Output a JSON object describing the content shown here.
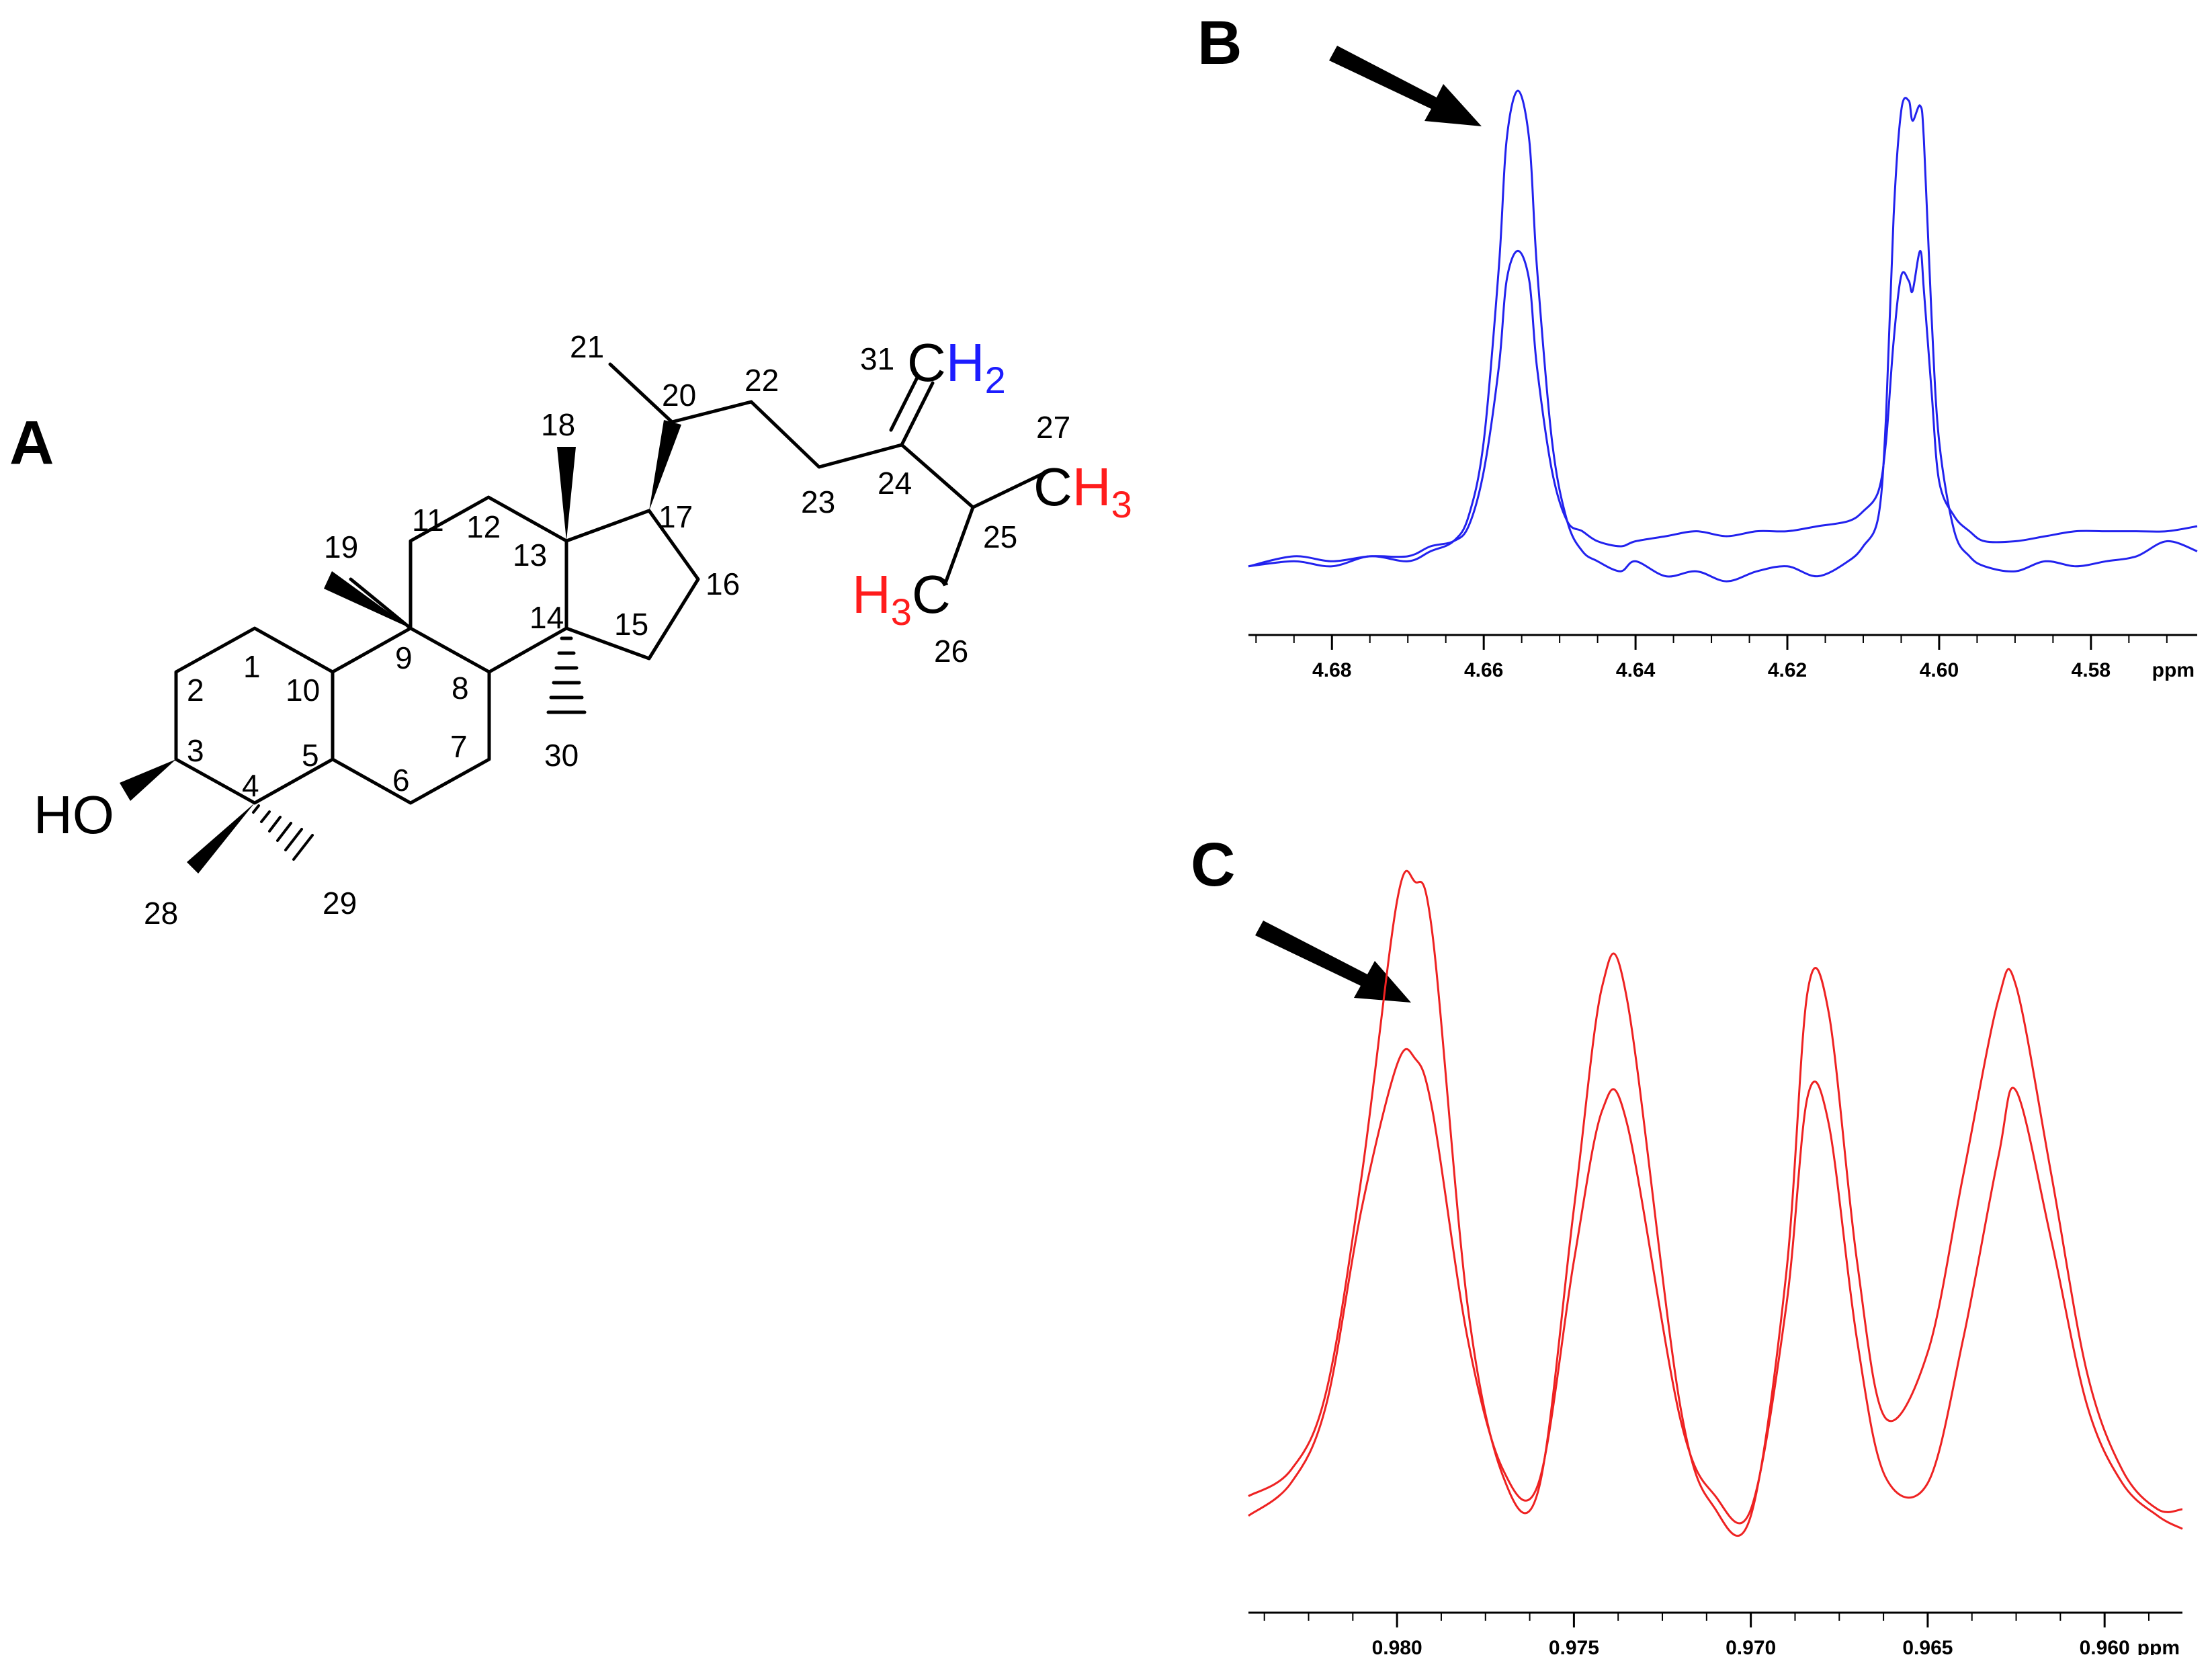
{
  "panels": {
    "a": "A",
    "b": "B",
    "c": "C"
  },
  "molecule": {
    "hydroxyl": "HO",
    "numbers": [
      "1",
      "2",
      "3",
      "4",
      "5",
      "6",
      "7",
      "8",
      "9",
      "10",
      "11",
      "12",
      "13",
      "14",
      "15",
      "16",
      "17",
      "18",
      "19",
      "20",
      "21",
      "22",
      "23",
      "24",
      "25",
      "26",
      "27",
      "28",
      "29",
      "30",
      "31"
    ],
    "ch2": {
      "c": "C",
      "h": "H",
      "sub": "2"
    },
    "ch3_right": {
      "c": "C",
      "h": "H",
      "sub": "3"
    },
    "ch3_left": {
      "h": "H",
      "sub": "3",
      "c": "C"
    },
    "colors": {
      "methylene": "#1c1cff",
      "methyl": "#ff1c1c"
    }
  },
  "chart_data": [
    {
      "panel": "B",
      "type": "line",
      "color": "#2222ee",
      "xlim": [
        4.691,
        4.566
      ],
      "x_reversed": true,
      "x_unit": "ppm",
      "xticks": [
        "4.68",
        "4.66",
        "4.64",
        "4.62",
        "4.60",
        "4.58"
      ],
      "xtick_values": [
        4.68,
        4.66,
        4.64,
        4.62,
        4.6,
        4.58
      ],
      "ylim": [
        0,
        1
      ],
      "arrow_target_ppm": 4.6555,
      "series": [
        {
          "x": [
            4.691,
            4.685,
            4.68,
            4.675,
            4.67,
            4.667,
            4.664,
            4.662,
            4.66,
            4.658,
            4.657,
            4.6555,
            4.654,
            4.653,
            4.651,
            4.649,
            4.647,
            4.645,
            4.642,
            4.64,
            4.636,
            4.632,
            4.628,
            4.624,
            4.62,
            4.616,
            4.612,
            4.61,
            4.608,
            4.607,
            4.606,
            4.605,
            4.604,
            4.6035,
            4.6025,
            4.602,
            4.601,
            4.6,
            4.598,
            4.596,
            4.594,
            4.59,
            4.586,
            4.582,
            4.578,
            4.574,
            4.57,
            4.566
          ],
          "y": [
            0.05,
            0.06,
            0.05,
            0.07,
            0.06,
            0.08,
            0.1,
            0.15,
            0.3,
            0.65,
            0.9,
            1.0,
            0.9,
            0.65,
            0.3,
            0.14,
            0.08,
            0.06,
            0.04,
            0.06,
            0.03,
            0.04,
            0.02,
            0.04,
            0.05,
            0.03,
            0.06,
            0.09,
            0.15,
            0.35,
            0.75,
            0.96,
            0.98,
            0.94,
            0.97,
            0.9,
            0.55,
            0.3,
            0.12,
            0.07,
            0.05,
            0.04,
            0.06,
            0.05,
            0.06,
            0.07,
            0.1,
            0.08
          ]
        },
        {
          "x": [
            4.691,
            4.685,
            4.68,
            4.675,
            4.67,
            4.667,
            4.664,
            4.662,
            4.66,
            4.658,
            4.657,
            4.6555,
            4.654,
            4.653,
            4.651,
            4.649,
            4.647,
            4.645,
            4.642,
            4.64,
            4.636,
            4.632,
            4.628,
            4.624,
            4.62,
            4.616,
            4.612,
            4.61,
            4.608,
            4.607,
            4.606,
            4.605,
            4.604,
            4.6035,
            4.6025,
            4.602,
            4.601,
            4.6,
            4.598,
            4.596,
            4.594,
            4.59,
            4.586,
            4.582,
            4.578,
            4.574,
            4.57,
            4.566
          ],
          "y": [
            0.05,
            0.07,
            0.06,
            0.07,
            0.07,
            0.09,
            0.1,
            0.13,
            0.24,
            0.45,
            0.62,
            0.68,
            0.62,
            0.45,
            0.24,
            0.14,
            0.12,
            0.1,
            0.09,
            0.1,
            0.11,
            0.12,
            0.11,
            0.12,
            0.12,
            0.13,
            0.14,
            0.16,
            0.2,
            0.3,
            0.5,
            0.63,
            0.62,
            0.6,
            0.68,
            0.6,
            0.4,
            0.22,
            0.15,
            0.12,
            0.1,
            0.1,
            0.11,
            0.12,
            0.12,
            0.12,
            0.12,
            0.13
          ]
        }
      ]
    },
    {
      "panel": "C",
      "type": "line",
      "color": "#ee2222",
      "xlim": [
        0.9842,
        0.9578
      ],
      "x_reversed": true,
      "x_unit": "ppm",
      "xticks": [
        "0.980",
        "0.975",
        "0.970",
        "0.965",
        "0.960"
      ],
      "xtick_values": [
        0.98,
        0.975,
        0.97,
        0.965,
        0.96
      ],
      "ylim": [
        0,
        1
      ],
      "arrow_target_ppm": 0.9795,
      "series": [
        {
          "x": [
            0.9842,
            0.983,
            0.982,
            0.981,
            0.98,
            0.9795,
            0.979,
            0.978,
            0.977,
            0.976,
            0.975,
            0.9742,
            0.9735,
            0.972,
            0.971,
            0.97,
            0.969,
            0.9684,
            0.9678,
            0.967,
            0.9662,
            0.965,
            0.964,
            0.963,
            0.9625,
            0.9615,
            0.9605,
            0.9595,
            0.9585,
            0.9578
          ],
          "y": [
            0.06,
            0.1,
            0.22,
            0.55,
            0.97,
            1.0,
            0.92,
            0.35,
            0.09,
            0.07,
            0.5,
            0.84,
            0.82,
            0.2,
            0.04,
            0.03,
            0.4,
            0.83,
            0.8,
            0.42,
            0.18,
            0.28,
            0.55,
            0.82,
            0.84,
            0.55,
            0.25,
            0.1,
            0.04,
            0.04
          ]
        },
        {
          "x": [
            0.9842,
            0.983,
            0.982,
            0.981,
            0.98,
            0.9795,
            0.979,
            0.978,
            0.977,
            0.976,
            0.975,
            0.9742,
            0.9735,
            0.972,
            0.971,
            0.97,
            0.969,
            0.9684,
            0.9678,
            0.967,
            0.9662,
            0.965,
            0.964,
            0.963,
            0.9625,
            0.9615,
            0.9605,
            0.9595,
            0.9585,
            0.9578
          ],
          "y": [
            0.03,
            0.08,
            0.2,
            0.5,
            0.72,
            0.73,
            0.65,
            0.3,
            0.1,
            0.08,
            0.42,
            0.65,
            0.63,
            0.18,
            0.06,
            0.04,
            0.35,
            0.67,
            0.63,
            0.3,
            0.09,
            0.08,
            0.3,
            0.58,
            0.68,
            0.45,
            0.2,
            0.08,
            0.03,
            0.01
          ]
        }
      ]
    }
  ]
}
